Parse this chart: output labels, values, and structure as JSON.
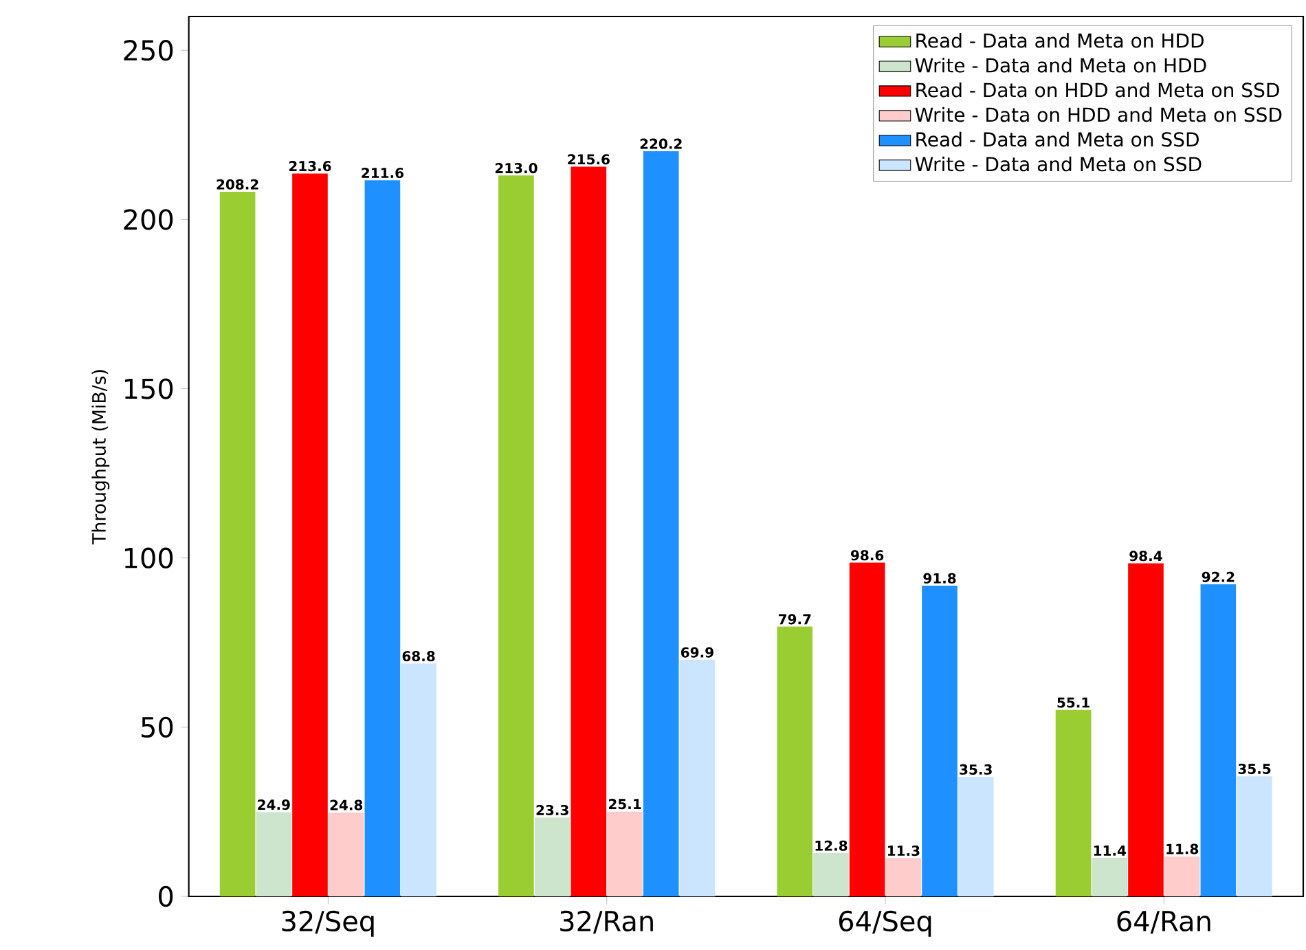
{
  "chart_data": {
    "type": "bar",
    "ylabel": "Throughput (MiB/s)",
    "categories": [
      "32/Seq",
      "32/Ran",
      "64/Seq",
      "64/Ran"
    ],
    "ylim": [
      0,
      260
    ],
    "yticks": [
      0,
      50,
      100,
      150,
      200,
      250
    ],
    "legend": "top right",
    "series": [
      {
        "name": "Read - Data and Meta on HDD",
        "color": "#9acd32",
        "values": [
          208.2,
          213.0,
          79.7,
          55.1
        ],
        "value_labels": [
          "208.2",
          "213.0",
          "79.7",
          "55.1"
        ]
      },
      {
        "name": "Write - Data and Meta on HDD",
        "color": "#cce5cc",
        "values": [
          24.9,
          23.3,
          12.8,
          11.4
        ],
        "value_labels": [
          "24.9",
          "23.3",
          "12.8",
          "11.4"
        ]
      },
      {
        "name": "Read - Data on HDD and Meta on SSD",
        "color": "#ff0000",
        "values": [
          213.6,
          215.6,
          98.6,
          98.4
        ],
        "value_labels": [
          "213.6",
          "215.6",
          "98.6",
          "98.4"
        ]
      },
      {
        "name": "Write - Data on HDD and Meta on SSD",
        "color": "#ffcccc",
        "values": [
          24.8,
          25.1,
          11.3,
          11.8
        ],
        "value_labels": [
          "24.8",
          "25.1",
          "11.3",
          "11.8"
        ]
      },
      {
        "name": "Read - Data and Meta on SSD",
        "color": "#1e90ff",
        "values": [
          211.6,
          220.2,
          91.8,
          92.2
        ],
        "value_labels": [
          "211.6",
          "220.2",
          "91.8",
          "92.2"
        ]
      },
      {
        "name": "Write - Data and Meta on SSD",
        "color": "#cce5ff",
        "values": [
          68.8,
          69.9,
          35.3,
          35.5
        ],
        "value_labels": [
          "68.8",
          "69.9",
          "35.3",
          "35.5"
        ]
      }
    ]
  }
}
